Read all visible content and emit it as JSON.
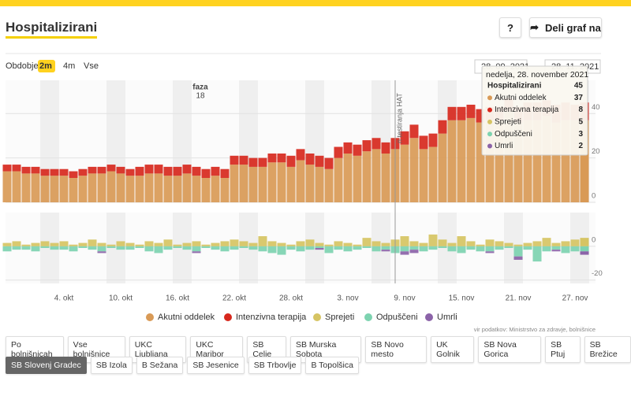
{
  "header": {
    "title": "Hospitalizirani",
    "help": "?",
    "share": "Deli graf na"
  },
  "period": {
    "label": "Obdobje",
    "options": [
      "2m",
      "4m",
      "Vse"
    ],
    "selected_index": 0
  },
  "date_range": [
    "28. 09. 2021",
    "28. 11. 2021"
  ],
  "chart_data": [
    {
      "type": "bar",
      "stacked": true,
      "ylim": [
        0,
        55
      ],
      "yticks": [
        0,
        20,
        40
      ],
      "grid": true,
      "annotations": [
        "faza",
        "18",
        "n testiranja HAT"
      ],
      "series": [
        {
          "name": "Akutni oddelek",
          "color": "#d99a56",
          "values": [
            14,
            14,
            13,
            13,
            12,
            12,
            12,
            11,
            12,
            13,
            13,
            14,
            13,
            12,
            12,
            13,
            13,
            12,
            12,
            13,
            12,
            11,
            12,
            11,
            17,
            17,
            16,
            16,
            18,
            18,
            16,
            19,
            17,
            16,
            15,
            20,
            22,
            21,
            23,
            24,
            22,
            24,
            26,
            29,
            24,
            25,
            31,
            37,
            37,
            38,
            36,
            37,
            37,
            41,
            36,
            37,
            37,
            39,
            36,
            37,
            37,
            37
          ]
        },
        {
          "name": "Intenzivna terapija",
          "color": "#d7281d",
          "values": [
            3,
            3,
            3,
            3,
            3,
            3,
            3,
            3,
            3,
            3,
            3,
            3,
            3,
            3,
            4,
            4,
            4,
            4,
            4,
            4,
            4,
            4,
            4,
            4,
            4,
            4,
            4,
            4,
            4,
            4,
            5,
            5,
            5,
            5,
            5,
            5,
            5,
            5,
            5,
            5,
            5,
            5,
            6,
            6,
            6,
            6,
            6,
            6,
            6,
            6,
            6,
            6,
            6,
            6,
            7,
            8,
            8,
            7,
            8,
            8,
            7,
            8
          ]
        }
      ]
    },
    {
      "type": "bar",
      "stacked": true,
      "ylim": [
        -22,
        20
      ],
      "yticks": [
        0,
        -20
      ],
      "grid": true,
      "categories": [
        null,
        null,
        null,
        null,
        null,
        null,
        "4. okt",
        null,
        null,
        null,
        null,
        null,
        "10. okt",
        null,
        null,
        null,
        null,
        null,
        "16. okt",
        null,
        null,
        null,
        null,
        null,
        "22. okt",
        null,
        null,
        null,
        null,
        null,
        "28. okt",
        null,
        null,
        null,
        null,
        null,
        "3. nov",
        null,
        null,
        null,
        null,
        null,
        "9. nov",
        null,
        null,
        null,
        null,
        null,
        "15. nov",
        null,
        null,
        null,
        null,
        null,
        "21. nov",
        null,
        null,
        null,
        null,
        null,
        "27. nov",
        null
      ],
      "series": [
        {
          "name": "Sprejeti",
          "color": "#d6c463",
          "values": [
            2,
            3,
            1,
            2,
            3,
            2,
            3,
            1,
            2,
            4,
            2,
            1,
            3,
            2,
            1,
            3,
            2,
            4,
            1,
            2,
            3,
            1,
            2,
            3,
            4,
            3,
            2,
            6,
            3,
            2,
            1,
            3,
            4,
            2,
            1,
            3,
            2,
            1,
            5,
            3,
            2,
            4,
            6,
            3,
            2,
            7,
            4,
            2,
            6,
            3,
            1,
            4,
            3,
            2,
            1,
            2,
            3,
            5,
            2,
            3,
            4,
            5
          ]
        },
        {
          "name": "Odpuščeni",
          "color": "#7dd3b0",
          "values": [
            -3,
            -2,
            -2,
            -3,
            -1,
            -2,
            -2,
            -3,
            -1,
            -2,
            -3,
            -1,
            -2,
            -2,
            -1,
            -3,
            -4,
            -2,
            -1,
            -2,
            -3,
            -1,
            -2,
            -3,
            -2,
            -1,
            -2,
            -3,
            -4,
            -5,
            -2,
            -3,
            -2,
            -1,
            -4,
            -2,
            -3,
            -2,
            -1,
            -3,
            -2,
            -4,
            -3,
            -2,
            -3,
            -2,
            -1,
            -3,
            -4,
            -2,
            -3,
            -3,
            -2,
            -1,
            -6,
            -2,
            -9,
            -3,
            -2,
            -4,
            -3,
            -3
          ]
        },
        {
          "name": "Umrli",
          "color": "#8b63a8",
          "values": [
            0,
            0,
            0,
            0,
            0,
            0,
            0,
            0,
            0,
            0,
            -1,
            0,
            0,
            0,
            0,
            0,
            0,
            0,
            0,
            0,
            -1,
            0,
            0,
            0,
            0,
            0,
            0,
            0,
            0,
            0,
            0,
            0,
            0,
            -1,
            0,
            0,
            0,
            0,
            0,
            0,
            -1,
            0,
            -2,
            -2,
            0,
            0,
            0,
            0,
            0,
            0,
            0,
            -1,
            0,
            0,
            -2,
            0,
            0,
            0,
            -1,
            0,
            0,
            -2
          ]
        }
      ]
    }
  ],
  "tooltip": {
    "title": "nedelja, 28. november 2021",
    "rows": [
      {
        "label": "Hospitalizirani",
        "value": 45
      },
      {
        "label": "Akutni oddelek",
        "value": 37
      },
      {
        "label": "Intenzivna terapija",
        "value": 8
      },
      {
        "label": "Sprejeti",
        "value": 5
      },
      {
        "label": "Odpuščeni",
        "value": 3
      },
      {
        "label": "Umrli",
        "value": 2
      }
    ]
  },
  "source": "vir podatkov: Ministrstvo za zdravje, bolnišnice",
  "hospitals": [
    "Po bolnišnicah",
    "Vse bolnišnice",
    "UKC Ljubljana",
    "UKC Maribor",
    "SB Celje",
    "SB Murska Sobota",
    "SB Novo mesto",
    "UK Golnik",
    "SB Nova Gorica",
    "SB Ptuj",
    "SB Brežice",
    "SB Slovenj Gradec",
    "SB Izola",
    "B Sežana",
    "SB Jesenice",
    "SB Trbovlje",
    "B Topolšica"
  ],
  "selected_hospital": 11
}
